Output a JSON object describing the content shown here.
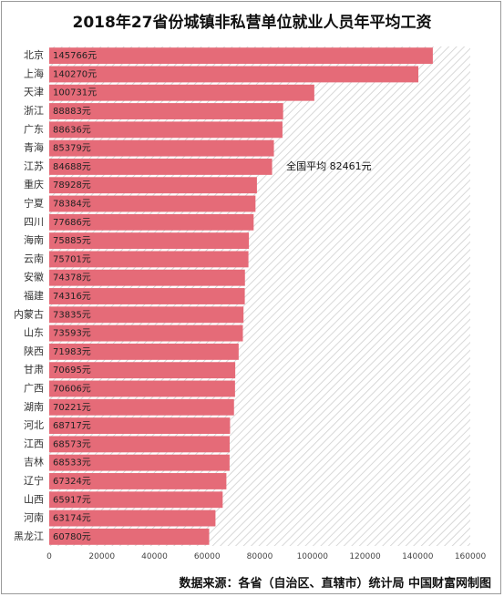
{
  "title": "2018年27省份城镇非私营单位就业人员年平均工资",
  "source": "数据来源：各省（自治区、直辖市）统计局 中国财富网制图",
  "colors": {
    "bar": "#e56b78",
    "hatch": "#cfcfcf"
  },
  "chart_data": {
    "type": "bar",
    "orientation": "horizontal",
    "categories": [
      "北京",
      "上海",
      "天津",
      "浙江",
      "广东",
      "青海",
      "江苏",
      "重庆",
      "宁夏",
      "四川",
      "海南",
      "云南",
      "安徽",
      "福建",
      "内蒙古",
      "山东",
      "陕西",
      "甘肃",
      "广西",
      "湖南",
      "河北",
      "江西",
      "吉林",
      "辽宁",
      "山西",
      "河南",
      "黑龙江"
    ],
    "values": [
      145766,
      140270,
      100731,
      88883,
      88636,
      85379,
      84688,
      78928,
      78384,
      77686,
      75885,
      75701,
      74378,
      74316,
      73835,
      73593,
      71983,
      70695,
      70606,
      70221,
      68717,
      68573,
      68533,
      67324,
      65917,
      63174,
      60780
    ],
    "value_labels": [
      "145766元",
      "140270元",
      "100731元",
      "88883元",
      "88636元",
      "85379元",
      "84688元",
      "78928元",
      "78384元",
      "77686元",
      "75885元",
      "75701元",
      "74378元",
      "74316元",
      "73835元",
      "73593元",
      "71983元",
      "70695元",
      "70606元",
      "70221元",
      "68717元",
      "68573元",
      "68533元",
      "67324元",
      "65917元",
      "63174元",
      "60780元"
    ],
    "xlim": [
      0,
      160000
    ],
    "xticks": [
      0,
      20000,
      40000,
      60000,
      80000,
      100000,
      120000,
      140000,
      160000
    ],
    "xtick_labels": [
      "0",
      "20000",
      "40000",
      "60000",
      "80000",
      "100000",
      "120000",
      "140000",
      "160000"
    ],
    "reference": {
      "value": 82461,
      "label": "全国平均 82461元"
    },
    "grid": false,
    "legend": "none"
  }
}
